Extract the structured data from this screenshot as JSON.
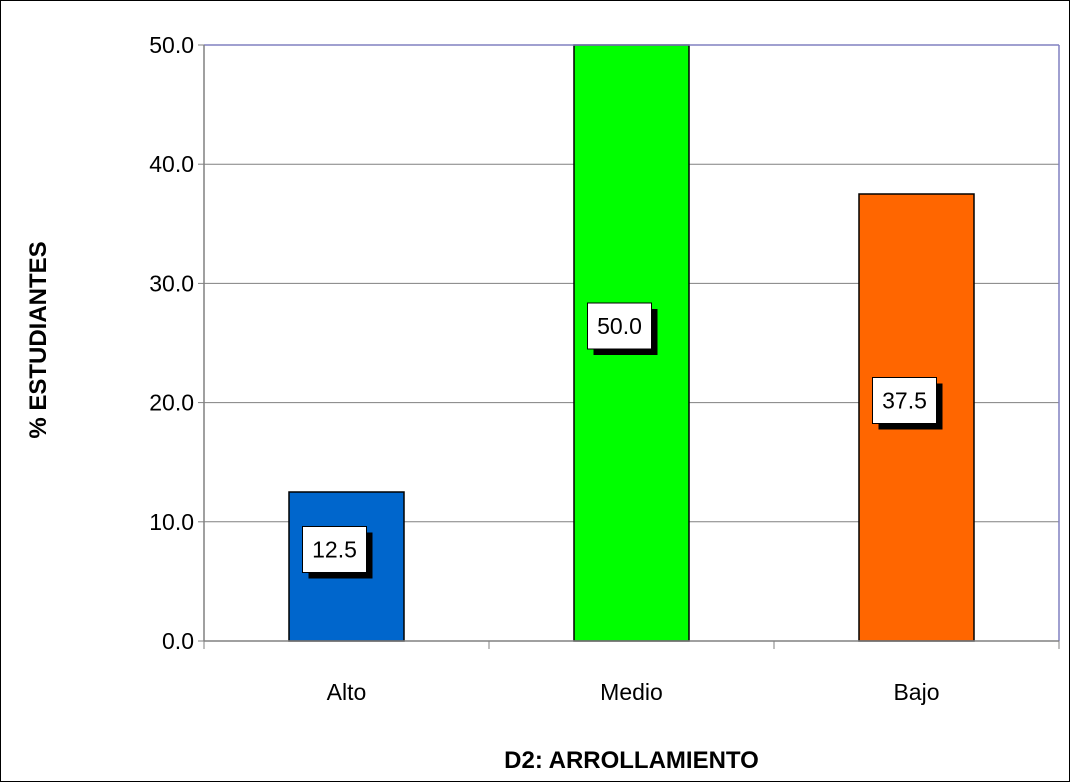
{
  "chart_data": {
    "type": "bar",
    "categories": [
      "Alto",
      "Medio",
      "Bajo"
    ],
    "values": [
      12.5,
      50.0,
      37.5
    ],
    "data_labels": [
      "12.5",
      "50.0",
      "37.5"
    ],
    "colors": [
      "#0066CC",
      "#00FF00",
      "#FF6600"
    ],
    "xlabel": "D2: ARROLLAMIENTO",
    "ylabel": "% ESTUDIANTES",
    "ylim": [
      0,
      50
    ],
    "yticks": [
      0,
      10,
      20,
      30,
      40,
      50
    ],
    "ytick_labels": [
      "0.0",
      "10.0",
      "20.0",
      "30.0",
      "40.0",
      "50.0"
    ],
    "grid": true,
    "grid_color": "#808080",
    "plot_border_color": "#8080C0"
  }
}
